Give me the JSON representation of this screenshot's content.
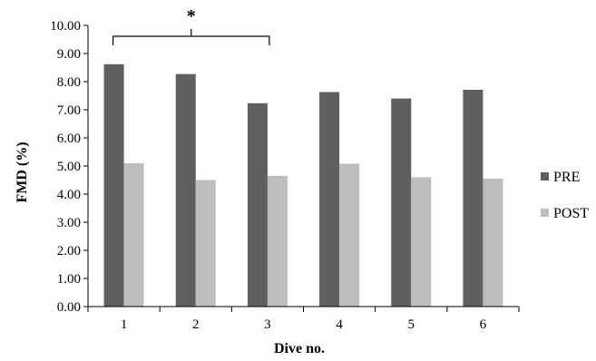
{
  "chart_data": {
    "type": "bar",
    "title": "",
    "xlabel": "Dive no.",
    "ylabel": "FMD (%)",
    "categories": [
      "1",
      "2",
      "3",
      "4",
      "5",
      "6"
    ],
    "series": [
      {
        "name": "PRE",
        "values": [
          8.62,
          8.27,
          7.23,
          7.63,
          7.4,
          7.71
        ],
        "color": "#5f5f5f"
      },
      {
        "name": "POST",
        "values": [
          5.1,
          4.5,
          4.65,
          5.08,
          4.6,
          4.55
        ],
        "color": "#bdbdbd"
      }
    ],
    "ylim": [
      0,
      10
    ],
    "yticks": [
      "0.00",
      "1.00",
      "2.00",
      "3.00",
      "4.00",
      "5.00",
      "6.00",
      "7.00",
      "8.00",
      "9.00",
      "10.00"
    ],
    "grid": false,
    "legend_position": "right",
    "annotations": [
      {
        "text": "*",
        "from_category": "1",
        "to_category": "3"
      }
    ]
  }
}
